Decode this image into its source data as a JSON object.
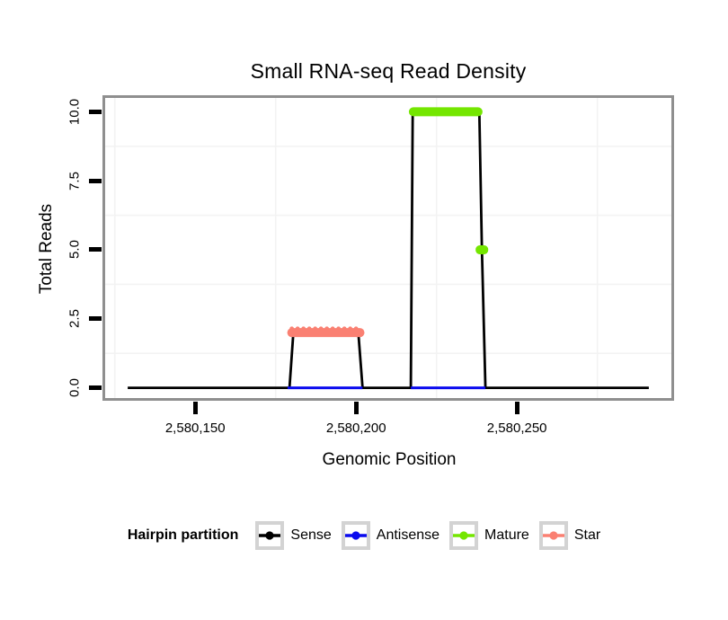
{
  "title": "Small RNA-seq Read Density",
  "x_axis": {
    "label": "Genomic Position",
    "tick_labels": [
      "2,580,150",
      "2,580,200",
      "2,580,250"
    ],
    "tick_values": [
      2580150,
      2580200,
      2580250
    ]
  },
  "y_axis": {
    "label": "Total Reads",
    "tick_labels": [
      "0.0",
      "2.5",
      "5.0",
      "7.5",
      "10.0"
    ],
    "tick_values": [
      0,
      2.5,
      5,
      7.5,
      10
    ]
  },
  "legend": {
    "title": "Hairpin partition",
    "items": [
      {
        "label": "Sense",
        "color": "#000000"
      },
      {
        "label": "Antisense",
        "color": "#0b0bee"
      },
      {
        "label": "Mature",
        "color": "#74e600"
      },
      {
        "label": "Star",
        "color": "#fa8072"
      }
    ]
  },
  "chart_data": {
    "type": "line",
    "title": "Small RNA-seq Read Density",
    "xlabel": "Genomic Position",
    "ylabel": "Total Reads",
    "xlim": [
      2580122,
      2580298
    ],
    "ylim": [
      -0.37,
      10.5
    ],
    "grid": {
      "minor_x": [
        2580125,
        2580175,
        2580225,
        2580275
      ],
      "minor_y": [
        1.25,
        3.75,
        6.25,
        8.75
      ],
      "minor_color": "#f3f3f3"
    },
    "series": [
      {
        "name": "Sense",
        "color": "#000000",
        "kind": "line",
        "stroke_width": 2.8,
        "points": [
          [
            2580129,
            0
          ],
          [
            2580179.3,
            0
          ],
          [
            2580180.5,
            2
          ],
          [
            2580200.7,
            2
          ],
          [
            2580202,
            0
          ],
          [
            2580217,
            0
          ],
          [
            2580217.6,
            10
          ],
          [
            2580238.3,
            10
          ],
          [
            2580239.1,
            5
          ],
          [
            2580240.2,
            0
          ],
          [
            2580291,
            0
          ]
        ]
      },
      {
        "name": "Antisense",
        "color": "#0b0bee",
        "kind": "segments",
        "stroke_width": 3,
        "segments": [
          {
            "y": 0,
            "x1": 2580178.7,
            "x2": 2580202.0
          },
          {
            "y": 0,
            "x1": 2580217.0,
            "x2": 2580240.2
          }
        ]
      },
      {
        "name": "Star",
        "color": "#fa8072",
        "kind": "segments",
        "stroke_width": 10,
        "rounded": true,
        "scalloped_top": true,
        "segments": [
          {
            "y": 2,
            "x1": 2580178.6,
            "x2": 2580202.6
          }
        ]
      },
      {
        "name": "Mature",
        "color": "#74e600",
        "kind": "segments",
        "stroke_width": 10,
        "rounded": true,
        "segments": [
          {
            "y": 10,
            "x1": 2580216.4,
            "x2": 2580239.3
          }
        ],
        "points": [
          [
            2580239.1,
            5
          ]
        ]
      }
    ]
  }
}
